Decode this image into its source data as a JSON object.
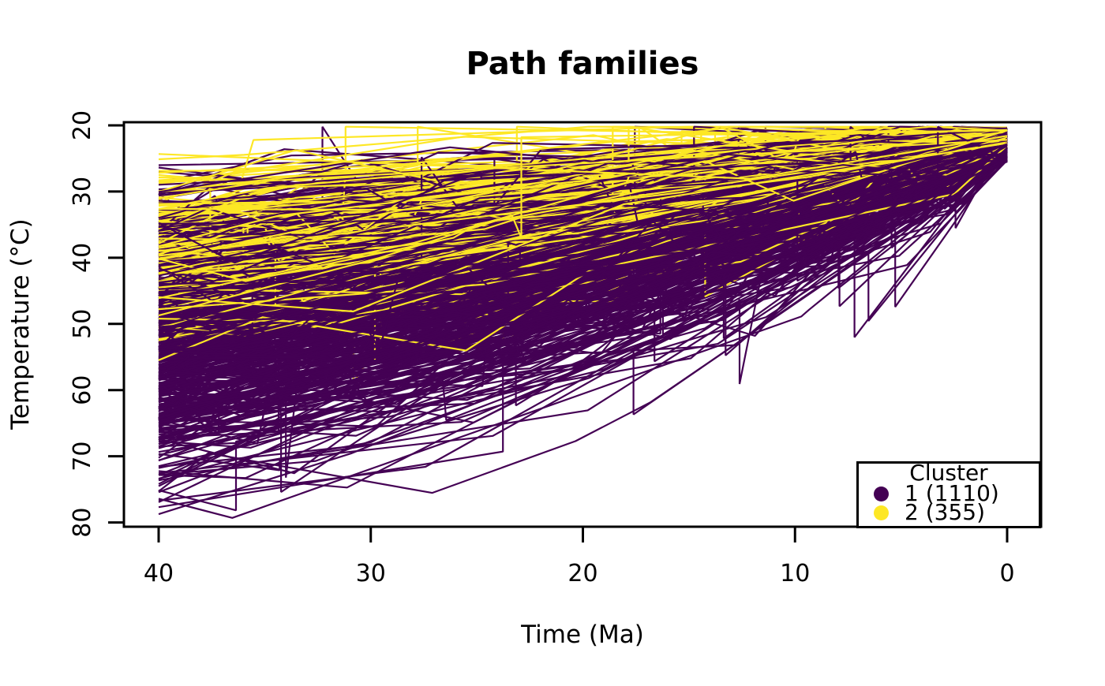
{
  "chart_data": {
    "type": "line",
    "title": "Path families",
    "xlabel": "Time (Ma)",
    "ylabel": "Temperature (°C)",
    "x_axis": {
      "label": "Time (Ma)",
      "ticks": [
        40,
        30,
        20,
        10,
        0
      ],
      "range": [
        40,
        0
      ],
      "reversed": true,
      "unit": "Ma"
    },
    "y_axis": {
      "label": "Temperature (°C)",
      "ticks": [
        20,
        30,
        40,
        50,
        60,
        70,
        80
      ],
      "range": [
        20,
        80
      ],
      "reversed": true,
      "unit": "°C"
    },
    "grid": false,
    "legend": {
      "title": "Cluster",
      "position": "bottom-right",
      "items": [
        {
          "label": "1 (1110)",
          "color": "#440154",
          "count": 1110
        },
        {
          "label": "2 (355)",
          "color": "#FDE725",
          "count": 355
        }
      ]
    },
    "series": [
      {
        "name": "Cluster 1",
        "count": 1110,
        "color": "#440154",
        "path_shape": "piecewise-linear cooling paths",
        "start_time_Ma": 40,
        "end_time_Ma": 0,
        "start_temp_range_C": [
          25,
          79
        ],
        "typical_start_temp_C": [
          48,
          70
        ],
        "end_temp_range_C": [
          20.4,
          25.5
        ]
      },
      {
        "name": "Cluster 2",
        "count": 355,
        "color": "#FDE725",
        "path_shape": "piecewise-linear cooling paths",
        "start_time_Ma": 40,
        "end_time_Ma": 0,
        "start_temp_range_C": [
          23.5,
          57
        ],
        "typical_start_temp_C": [
          28,
          50
        ],
        "end_temp_range_C": [
          20.3,
          23.2
        ]
      }
    ]
  }
}
